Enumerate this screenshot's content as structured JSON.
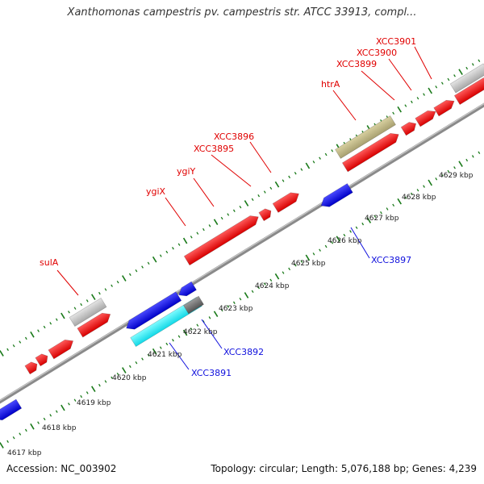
{
  "title": "Xanthomonas campestris pv. campestris str. ATCC 33913, compl...",
  "accession": "Accession: NC_003902",
  "summary": "Topology: circular; Length: 5,076,188 bp; Genes: 4,239",
  "colors": {
    "backbone": "#808080",
    "tick": "#1a7a1a",
    "plus_label": "#e00000",
    "minus_label": "#1010dd",
    "kbp_label": "#222222"
  },
  "kbp_scale": [
    {
      "kbp": 4617,
      "label": "4617 kbp"
    },
    {
      "kbp": 4618,
      "label": "4618 kbp"
    },
    {
      "kbp": 4619,
      "label": "4619 kbp"
    },
    {
      "kbp": 4620,
      "label": "4620 kbp"
    },
    {
      "kbp": 4621,
      "label": "4621 kbp"
    },
    {
      "kbp": 4622,
      "label": "4622 kbp"
    },
    {
      "kbp": 4623,
      "label": "4623 kbp"
    },
    {
      "kbp": 4624,
      "label": "4624 kbp"
    },
    {
      "kbp": 4625,
      "label": "4625 kbp"
    },
    {
      "kbp": 4626,
      "label": "4626 kbp"
    },
    {
      "kbp": 4627,
      "label": "4627 kbp"
    },
    {
      "kbp": 4628,
      "label": "4628 kbp"
    },
    {
      "kbp": 4629,
      "label": "4629 kbp"
    }
  ],
  "gene_labels": [
    {
      "text": "sulA",
      "strand": "plus"
    },
    {
      "text": "ygiX",
      "strand": "plus"
    },
    {
      "text": "ygiY",
      "strand": "plus"
    },
    {
      "text": "XCC3895",
      "strand": "plus"
    },
    {
      "text": "XCC3896",
      "strand": "plus"
    },
    {
      "text": "htrA",
      "strand": "plus"
    },
    {
      "text": "XCC3899",
      "strand": "plus"
    },
    {
      "text": "XCC3900",
      "strand": "plus"
    },
    {
      "text": "XCC3901",
      "strand": "plus"
    },
    {
      "text": "XCC3891",
      "strand": "minus"
    },
    {
      "text": "XCC3892",
      "strand": "minus"
    },
    {
      "text": "XCC3897",
      "strand": "minus"
    }
  ]
}
